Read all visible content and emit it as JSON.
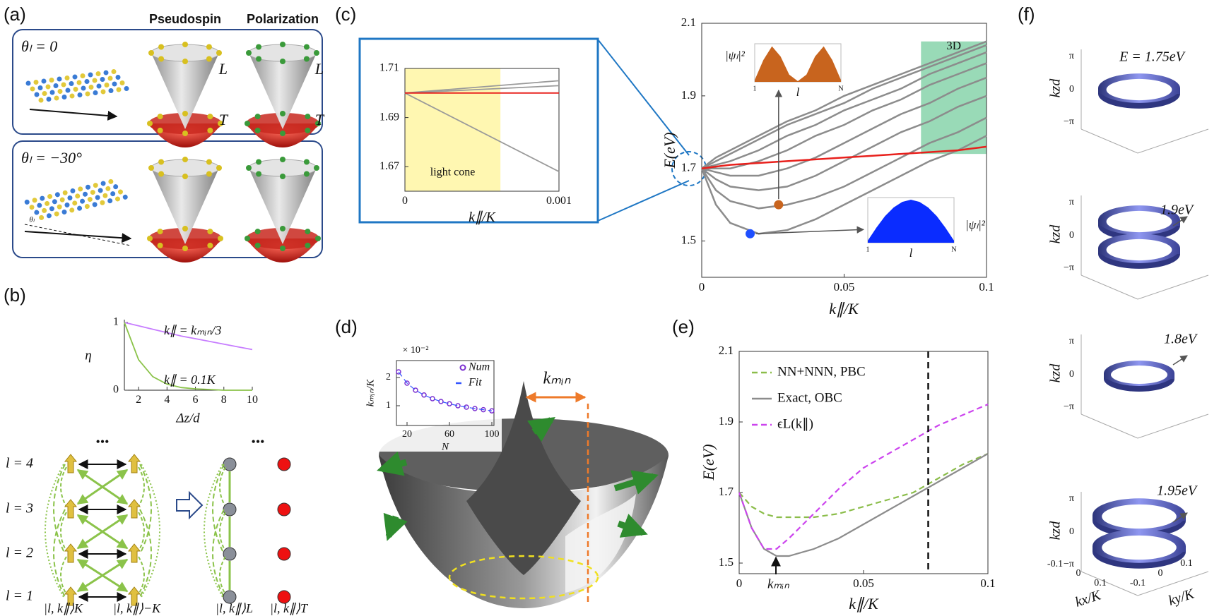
{
  "panel_labels": [
    "(a)",
    "(b)",
    "(c)",
    "(d)",
    "(e)",
    "(f)"
  ],
  "panel_a": {
    "column_titles": [
      "Pseudospin",
      "Polarization"
    ],
    "rows": [
      {
        "angle_label": "θₗ = 0",
        "cone_labels": [
          "L",
          "T",
          "L",
          "T"
        ]
      },
      {
        "angle_label": "θₗ = −30°",
        "tilt_label": "θₗ"
      }
    ]
  },
  "panel_b_diagram": {
    "layer_labels": [
      "l = 4",
      "l = 3",
      "l = 2",
      "l = 1"
    ],
    "ellipses": [
      "•••",
      "•••"
    ],
    "basis_labels": [
      "|l, k∥⟩K",
      "|l, k∥⟩−K",
      "|l, k∥⟩L",
      "|l, k∥⟩T"
    ]
  },
  "panel_d_diagram": {
    "annotation": "kₘᵢₙ"
  },
  "panel_f": {
    "energy_labels": [
      "E = 1.75eV",
      "1.9eV",
      "1.8eV",
      "1.95eV"
    ],
    "vertical_axis_label": "kzd",
    "kz_ticks": [
      "π",
      "0",
      "−π"
    ],
    "horizontal_axis_labels": [
      "kx/K",
      "ky/K"
    ],
    "horizontal_ticks": [
      "-0.1",
      "0",
      "0.1",
      "-0.1",
      "0",
      "0.1"
    ]
  },
  "chart_data": [
    {
      "type": "line",
      "xlabel": "Δz/d",
      "ylabel": "η",
      "x": [
        1,
        2,
        3,
        4,
        5,
        6,
        7,
        8,
        9,
        10
      ],
      "xlim": [
        1,
        10
      ],
      "ylim": [
        0,
        1
      ],
      "xticks": [
        2,
        4,
        6,
        8,
        10
      ],
      "yticks": [
        0,
        1
      ],
      "series": [
        {
          "color": "#c77dff",
          "values": [
            1,
            0.95,
            0.9,
            0.85,
            0.8,
            0.76,
            0.72,
            0.68,
            0.64,
            0.6
          ]
        },
        {
          "color": "#8bc34a",
          "values": [
            1,
            0.45,
            0.2,
            0.09,
            0.04,
            0.02,
            0.01,
            0,
            0,
            0
          ]
        }
      ],
      "annotations": [
        "k∥ = kₘᵢₙ/3",
        "k∥ = 0.1K"
      ]
    },
    {
      "type": "line",
      "xlabel": "k∥/K",
      "x": [
        0,
        0.001
      ],
      "xlim": [
        0,
        0.001
      ],
      "ylim": [
        1.66,
        1.71
      ],
      "xticks": [
        0,
        0.001
      ],
      "yticks": [
        1.67,
        1.69,
        1.71
      ],
      "highlight": {
        "label": "light cone",
        "xrange": [
          0,
          0.00062
        ],
        "yrange": [
          1.66,
          1.71
        ],
        "color": "#fff59d"
      },
      "series": [
        {
          "color": "#9a9a9a",
          "values": [
            1.7,
            1.705
          ]
        },
        {
          "color": "#9a9a9a",
          "values": [
            1.7,
            1.703
          ]
        },
        {
          "color": "#9a9a9a",
          "values": [
            1.7,
            1.668
          ]
        },
        {
          "color": "#e8201c",
          "values": [
            1.7,
            1.7
          ]
        }
      ]
    },
    {
      "type": "line",
      "xlabel": "k∥/K",
      "ylabel": "E(eV)",
      "x": [
        0,
        0.005,
        0.01,
        0.02,
        0.03,
        0.04,
        0.05,
        0.06,
        0.07,
        0.08,
        0.09,
        0.1
      ],
      "xlim": [
        0,
        0.1
      ],
      "ylim": [
        1.4,
        2.1
      ],
      "xticks": [
        0,
        0.05,
        0.1
      ],
      "yticks": [
        1.5,
        1.7,
        1.9,
        2.1
      ],
      "highlight": {
        "label": "3D",
        "xrange": [
          0.077,
          0.1
        ],
        "yrange": [
          1.74,
          2.05
        ],
        "color": "#7fd1a5"
      },
      "series": [
        {
          "color": "#8c8c8c",
          "values": [
            1.7,
            1.6,
            1.55,
            1.52,
            1.53,
            1.56,
            1.6,
            1.64,
            1.68,
            1.72,
            1.75,
            1.79
          ]
        },
        {
          "color": "#8c8c8c",
          "values": [
            1.7,
            1.64,
            1.61,
            1.59,
            1.6,
            1.62,
            1.65,
            1.69,
            1.73,
            1.77,
            1.8,
            1.84
          ]
        },
        {
          "color": "#8c8c8c",
          "values": [
            1.7,
            1.67,
            1.65,
            1.64,
            1.65,
            1.68,
            1.72,
            1.76,
            1.8,
            1.83,
            1.87,
            1.9
          ]
        },
        {
          "color": "#8c8c8c",
          "values": [
            1.7,
            1.69,
            1.68,
            1.68,
            1.7,
            1.73,
            1.77,
            1.81,
            1.85,
            1.88,
            1.92,
            1.95
          ]
        },
        {
          "color": "#8c8c8c",
          "values": [
            1.7,
            1.7,
            1.7,
            1.72,
            1.75,
            1.79,
            1.82,
            1.86,
            1.89,
            1.93,
            1.96,
            1.99
          ]
        },
        {
          "color": "#8c8c8c",
          "values": [
            1.7,
            1.71,
            1.72,
            1.75,
            1.79,
            1.82,
            1.86,
            1.89,
            1.92,
            1.96,
            1.99,
            2.02
          ]
        },
        {
          "color": "#8c8c8c",
          "values": [
            1.7,
            1.72,
            1.74,
            1.78,
            1.82,
            1.85,
            1.88,
            1.92,
            1.95,
            1.98,
            2.01,
            2.04
          ]
        },
        {
          "color": "#8c8c8c",
          "values": [
            1.7,
            1.73,
            1.75,
            1.79,
            1.83,
            1.86,
            1.9,
            1.93,
            1.96,
            1.99,
            2.02,
            2.05
          ]
        },
        {
          "color": "#e8201c",
          "values": [
            1.7,
            1.705,
            1.71,
            1.715,
            1.72,
            1.725,
            1.73,
            1.735,
            1.74,
            1.745,
            1.75,
            1.76
          ]
        }
      ],
      "markers": [
        {
          "x": 0.027,
          "y": 1.6,
          "color": "#c8641e"
        },
        {
          "x": 0.017,
          "y": 1.52,
          "color": "#1f4fff"
        }
      ]
    },
    {
      "type": "area",
      "xlabel": "l",
      "ylabel": "|ψₗ|²",
      "xtick_labels": [
        "1",
        "N"
      ],
      "ylim": [
        0,
        1.05
      ],
      "color": "#c8641e",
      "values": [
        0.05,
        0.6,
        0.98,
        0.7,
        0.2,
        0.02,
        0.2,
        0.7,
        0.98,
        0.6,
        0.05
      ]
    },
    {
      "type": "area",
      "xlabel": "l",
      "ylabel": "|ψₗ|²",
      "xtick_labels": [
        "1",
        "N"
      ],
      "ylim": [
        0,
        1.05
      ],
      "color": "#0a2cff",
      "values": [
        0.05,
        0.35,
        0.62,
        0.82,
        0.95,
        1,
        0.95,
        0.82,
        0.62,
        0.35,
        0.05
      ]
    },
    {
      "type": "line",
      "title": "× 10⁻²",
      "xlabel": "N",
      "ylabel": "kₘᵢₙ/K",
      "x": [
        12,
        20,
        28,
        36,
        44,
        52,
        60,
        68,
        76,
        84,
        92,
        100
      ],
      "xlim": [
        10,
        102
      ],
      "ylim": [
        0.3,
        2.6
      ],
      "xticks": [
        20,
        60,
        100
      ],
      "yticks": [
        1,
        2
      ],
      "legend": "upper right",
      "series": [
        {
          "name": "Num",
          "color": "#7b2fd0",
          "style": "marker",
          "values": [
            2.2,
            1.8,
            1.55,
            1.38,
            1.25,
            1.15,
            1.07,
            1.0,
            0.95,
            0.9,
            0.86,
            0.82
          ]
        },
        {
          "name": "Fit",
          "color": "#3355ff",
          "dash": true,
          "values": [
            2.2,
            1.8,
            1.55,
            1.38,
            1.25,
            1.15,
            1.07,
            1.0,
            0.95,
            0.9,
            0.86,
            0.82
          ]
        }
      ]
    },
    {
      "type": "line",
      "xlabel": "k∥/K",
      "ylabel": "E(eV)",
      "x": [
        0,
        0.005,
        0.01,
        0.015,
        0.02,
        0.03,
        0.04,
        0.05,
        0.06,
        0.07,
        0.08,
        0.09,
        0.1
      ],
      "xlim": [
        0,
        0.1
      ],
      "ylim": [
        1.47,
        2.1
      ],
      "xticks": [
        0,
        0.05,
        0.1
      ],
      "yticks": [
        1.5,
        1.7,
        1.9,
        2.1
      ],
      "legend": "upper left",
      "vline": {
        "x": 0.076,
        "color": "#111"
      },
      "series": [
        {
          "name": "NN+NNN, PBC",
          "color": "#8bbd4a",
          "dash": true,
          "values": [
            1.7,
            1.66,
            1.64,
            1.63,
            1.63,
            1.63,
            1.64,
            1.66,
            1.68,
            1.7,
            1.74,
            1.78,
            1.81
          ]
        },
        {
          "name": "Exact, OBC",
          "color": "#8c8c8c",
          "values": [
            1.7,
            1.6,
            1.54,
            1.52,
            1.52,
            1.54,
            1.57,
            1.61,
            1.65,
            1.69,
            1.73,
            1.77,
            1.81
          ]
        },
        {
          "name": "ϵL(k∥)",
          "color": "#cc44ee",
          "dash": true,
          "values": [
            1.7,
            1.6,
            1.54,
            1.54,
            1.57,
            1.64,
            1.71,
            1.77,
            1.81,
            1.85,
            1.89,
            1.92,
            1.95
          ]
        }
      ],
      "annotations": [
        "kₘᵢₙ"
      ]
    }
  ]
}
